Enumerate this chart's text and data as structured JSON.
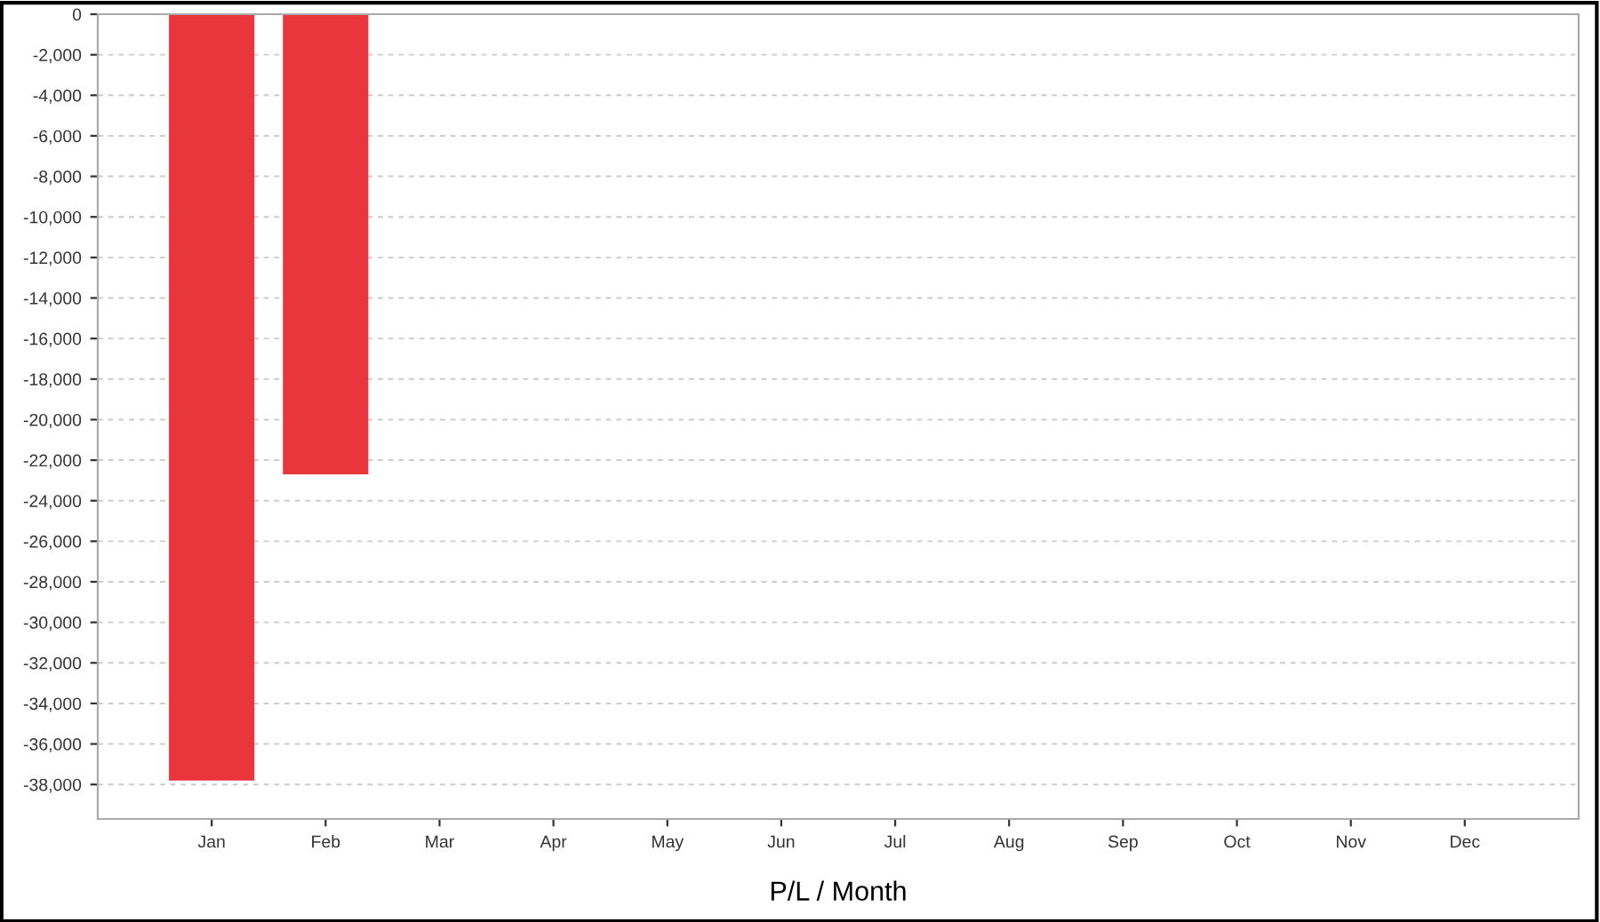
{
  "chart_data": {
    "type": "bar",
    "xlabel": "P/L / Month",
    "categories": [
      "Jan",
      "Feb",
      "Mar",
      "Apr",
      "May",
      "Jun",
      "Jul",
      "Aug",
      "Sep",
      "Oct",
      "Nov",
      "Dec"
    ],
    "values": [
      -37800,
      -22700,
      null,
      null,
      null,
      null,
      null,
      null,
      null,
      null,
      null,
      null
    ],
    "color": "#e8363c",
    "ylim": [
      -39700,
      0
    ],
    "yticks": [
      {
        "value": 0,
        "label": "0"
      },
      {
        "value": -2000,
        "label": "-2,000"
      },
      {
        "value": -4000,
        "label": "-4,000"
      },
      {
        "value": -6000,
        "label": "-6,000"
      },
      {
        "value": -8000,
        "label": "-8,000"
      },
      {
        "value": -10000,
        "label": "-10,000"
      },
      {
        "value": -12000,
        "label": "-12,000"
      },
      {
        "value": -14000,
        "label": "-14,000"
      },
      {
        "value": -16000,
        "label": "-16,000"
      },
      {
        "value": -18000,
        "label": "-18,000"
      },
      {
        "value": -20000,
        "label": "-20,000"
      },
      {
        "value": -22000,
        "label": "-22,000"
      },
      {
        "value": -24000,
        "label": "-24,000"
      },
      {
        "value": -26000,
        "label": "-26,000"
      },
      {
        "value": -28000,
        "label": "-28,000"
      },
      {
        "value": -30000,
        "label": "-30,000"
      },
      {
        "value": -32000,
        "label": "-32,000"
      },
      {
        "value": -34000,
        "label": "-34,000"
      },
      {
        "value": -36000,
        "label": "-36,000"
      },
      {
        "value": -38000,
        "label": "-38,000"
      }
    ],
    "grid": "y"
  }
}
